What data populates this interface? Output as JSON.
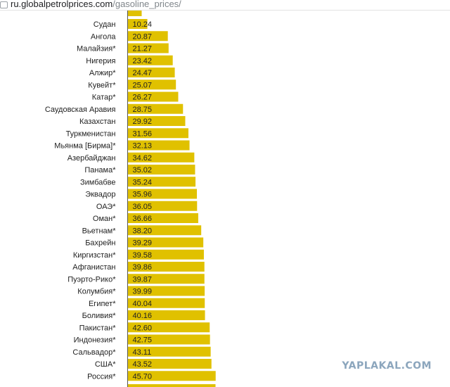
{
  "browser": {
    "url_host": "ru.globalpetrolprices.com",
    "url_path": "/gasoline_prices/"
  },
  "watermark": "YAPLAKAL.COM",
  "colors": {
    "bar": "#e0c100",
    "axis": "#555555"
  },
  "chart_data": {
    "type": "bar",
    "orientation": "horizontal",
    "title": "",
    "xlabel": "",
    "ylabel": "",
    "xlim": [
      0,
      160
    ],
    "grid": false,
    "categories": [
      "Судан",
      "Ангола",
      "Малайзия*",
      "Нигерия",
      "Алжир*",
      "Кувейт*",
      "Катар*",
      "Саудовская Аравия",
      "Казахстан",
      "Туркменистан",
      "Мьянма [Бирма]*",
      "Азербайджан",
      "Панама*",
      "Зимбабве",
      "Эквадор",
      "ОАЭ*",
      "Оман*",
      "Вьетнам*",
      "Бахрейн",
      "Киргизстан*",
      "Афганистан",
      "Пуэрто-Рико*",
      "Колумбия*",
      "Египет*",
      "Боливия*",
      "Пакистан*",
      "Индонезия*",
      "Сальвадор*",
      "США*",
      "Россия*"
    ],
    "values": [
      10.24,
      20.87,
      21.27,
      23.42,
      24.47,
      25.07,
      26.27,
      28.75,
      29.92,
      31.56,
      32.13,
      34.62,
      35.02,
      35.24,
      35.96,
      36.05,
      36.66,
      38.2,
      39.29,
      39.58,
      39.86,
      39.87,
      39.99,
      40.04,
      40.16,
      42.6,
      42.75,
      43.11,
      43.52,
      45.7
    ],
    "data_labels": [
      "10.24",
      "20.87",
      "21.27",
      "23.42",
      "24.47",
      "25.07",
      "26.27",
      "28.75",
      "29.92",
      "31.56",
      "32.13",
      "34.62",
      "35.02",
      "35.24",
      "35.96",
      "36.05",
      "36.66",
      "38.20",
      "39.29",
      "39.58",
      "39.86",
      "39.87",
      "39.99",
      "40.04",
      "40.16",
      "42.60",
      "42.75",
      "43.11",
      "43.52",
      "45.70"
    ]
  }
}
